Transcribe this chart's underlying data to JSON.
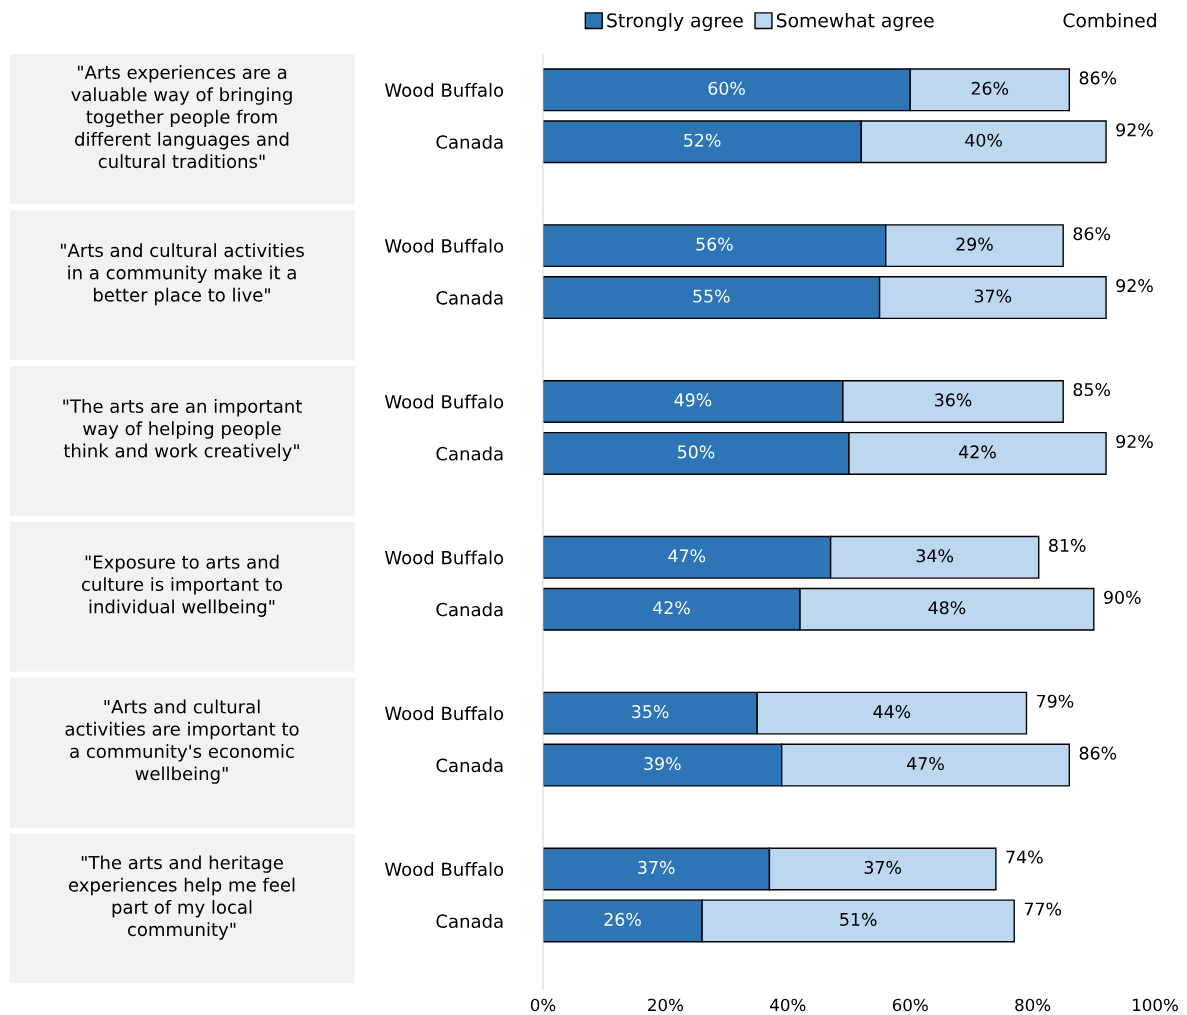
{
  "chart_data": [
    {
      "type": "bar",
      "orientation": "horizontal",
      "stacked": true,
      "categories": [
        "Wood Buffalo",
        "Canada"
      ],
      "series": [
        {
          "name": "Strongly agree",
          "color": "#2e75b6",
          "values": [
            60,
            52
          ],
          "value_labels": [
            "60%",
            "52%"
          ]
        },
        {
          "name": "Somewhat agree",
          "color": "#bdd7ee",
          "values": [
            26,
            40
          ],
          "value_labels": [
            "26%",
            "40%"
          ]
        }
      ],
      "totals": [
        "86%",
        "92%"
      ],
      "legend_title": "Combined",
      "legend": "top",
      "annotations": [
        "\"Arts experiences are a\nvaluable way of bringing\ntogether people from\ndifferent languages and\ncultural traditions\""
      ],
      "xlim": [
        0,
        100
      ],
      "tick_labels": "y",
      "grid": false
    },
    {
      "type": "bar",
      "orientation": "horizontal",
      "stacked": true,
      "categories": [
        "Wood Buffalo",
        "Canada"
      ],
      "series": [
        {
          "color": "#2e75b6",
          "values": [
            56,
            55
          ],
          "value_labels": [
            "56%",
            "55%"
          ]
        },
        {
          "color": "#bdd7ee",
          "values": [
            29,
            37
          ],
          "value_labels": [
            "29%",
            "37%"
          ]
        }
      ],
      "totals": [
        "86%",
        "92%"
      ],
      "annotations": [
        "\"Arts and cultural activities\nin a community make it a\nbetter place to live\""
      ],
      "xlim": [
        0,
        100
      ],
      "tick_labels": "y",
      "grid": false
    },
    {
      "type": "bar",
      "orientation": "horizontal",
      "stacked": true,
      "categories": [
        "Wood Buffalo",
        "Canada"
      ],
      "series": [
        {
          "color": "#2e75b6",
          "values": [
            49,
            50
          ],
          "value_labels": [
            "49%",
            "50%"
          ]
        },
        {
          "color": "#bdd7ee",
          "values": [
            36,
            42
          ],
          "value_labels": [
            "36%",
            "42%"
          ]
        }
      ],
      "totals": [
        "85%",
        "92%"
      ],
      "annotations": [
        "\"The arts are an important\nway of helping people\nthink and work creatively\""
      ],
      "xlim": [
        0,
        100
      ],
      "tick_labels": "y",
      "grid": false
    },
    {
      "type": "bar",
      "orientation": "horizontal",
      "stacked": true,
      "categories": [
        "Wood Buffalo",
        "Canada"
      ],
      "series": [
        {
          "color": "#2e75b6",
          "values": [
            47,
            42
          ],
          "value_labels": [
            "47%",
            "42%"
          ]
        },
        {
          "color": "#bdd7ee",
          "values": [
            34,
            48
          ],
          "value_labels": [
            "34%",
            "48%"
          ]
        }
      ],
      "totals": [
        "81%",
        "90%"
      ],
      "annotations": [
        "\"Exposure to arts and\nculture is important to\nindividual wellbeing\""
      ],
      "xlim": [
        0,
        100
      ],
      "tick_labels": "y",
      "grid": false
    },
    {
      "type": "bar",
      "orientation": "horizontal",
      "stacked": true,
      "categories": [
        "Wood Buffalo",
        "Canada"
      ],
      "series": [
        {
          "color": "#2e75b6",
          "values": [
            35,
            39
          ],
          "value_labels": [
            "35%",
            "39%"
          ]
        },
        {
          "color": "#bdd7ee",
          "values": [
            44,
            47
          ],
          "value_labels": [
            "44%",
            "47%"
          ]
        }
      ],
      "totals": [
        "79%",
        "86%"
      ],
      "annotations": [
        "\"Arts and cultural\nactivities are important to\na community's economic\nwellbeing\""
      ],
      "xlim": [
        0,
        100
      ],
      "tick_labels": "y",
      "grid": false
    },
    {
      "type": "bar",
      "orientation": "horizontal",
      "stacked": true,
      "categories": [
        "Wood Buffalo",
        "Canada"
      ],
      "series": [
        {
          "color": "#2e75b6",
          "values": [
            37,
            26
          ],
          "value_labels": [
            "37%",
            "26%"
          ]
        },
        {
          "color": "#bdd7ee",
          "values": [
            37,
            51
          ],
          "value_labels": [
            "37%",
            "51%"
          ]
        }
      ],
      "totals": [
        "74%",
        "77%"
      ],
      "annotations": [
        "\"The arts and heritage\nexperiences help me feel\npart of my local\ncommunity\""
      ],
      "xlim": [
        0,
        100
      ],
      "xticks": [
        {
          "value": 0,
          "label": "0%"
        },
        {
          "value": 20,
          "label": "20%"
        },
        {
          "value": 40,
          "label": "40%"
        },
        {
          "value": 60,
          "label": "60%"
        },
        {
          "value": 80,
          "label": "80%"
        },
        {
          "value": 100,
          "label": "100%"
        }
      ],
      "grid": false
    }
  ]
}
